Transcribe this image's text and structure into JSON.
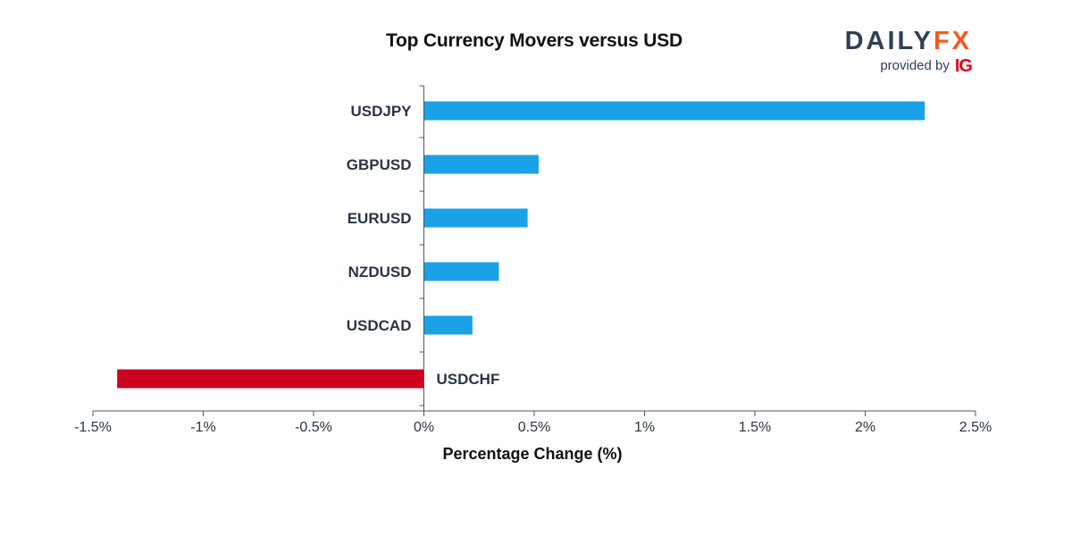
{
  "logo": {
    "word_part1": "DAILY",
    "word_part2": "FX",
    "provided_by": "provided by",
    "ig": "IG"
  },
  "colors": {
    "positive": "#1ba1e6",
    "negative": "#cc001f",
    "axis": "#555555",
    "logo_dark": "#2e3f57",
    "logo_orange": "#f15a22",
    "ig_red": "#e3001b"
  },
  "chart_data": {
    "type": "bar",
    "orientation": "horizontal",
    "title": "Top Currency Movers versus USD",
    "xlabel": "Percentage Change (%)",
    "ylabel": "",
    "xlim": [
      -1.5,
      2.5
    ],
    "x_ticks": [
      -1.5,
      -1,
      -0.5,
      0,
      0.5,
      1,
      1.5,
      2,
      2.5
    ],
    "x_tick_labels": [
      "-1.5%",
      "-1%",
      "-0.5%",
      "0%",
      "0.5%",
      "1%",
      "1.5%",
      "2%",
      "2.5%"
    ],
    "categories": [
      "USDJPY",
      "GBPUSD",
      "EURUSD",
      "NZDUSD",
      "USDCAD",
      "USDCHF"
    ],
    "values": [
      2.27,
      0.52,
      0.47,
      0.34,
      0.22,
      -1.39
    ],
    "grid": false,
    "legend": "none"
  }
}
